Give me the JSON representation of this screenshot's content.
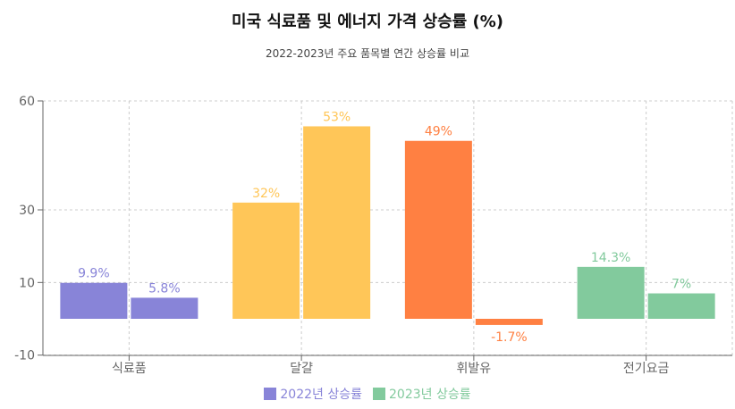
{
  "chart_data": {
    "type": "bar",
    "title": "미국 식료품 및 에너지 가격 상승률 (%)",
    "subtitle": "2022-2023년 주요 품목별 연간 상승률 비교",
    "categories": [
      "식료품",
      "달걀",
      "휘발유",
      "전기요금"
    ],
    "series": [
      {
        "name": "2022년 상승률",
        "values": [
          9.9,
          32,
          49,
          14.3
        ],
        "labels": [
          "9.9%",
          "32%",
          "49%",
          "14.3%"
        ]
      },
      {
        "name": "2023년 상승률",
        "values": [
          5.8,
          53,
          -1.7,
          7
        ],
        "labels": [
          "5.8%",
          "53%",
          "-1.7%",
          "7%"
        ]
      }
    ],
    "category_colors": [
      [
        "#8884d8",
        "#8884d8"
      ],
      [
        "#ffc658",
        "#ffc658"
      ],
      [
        "#ff8042",
        "#ff8042"
      ],
      [
        "#82ca9d",
        "#82ca9d"
      ]
    ],
    "legend_colors": [
      "#8884d8",
      "#82ca9d"
    ],
    "yticks": [
      -10,
      10,
      30,
      60
    ],
    "ylim": [
      -10,
      60
    ],
    "grid": true,
    "legend_position": "bottom"
  }
}
